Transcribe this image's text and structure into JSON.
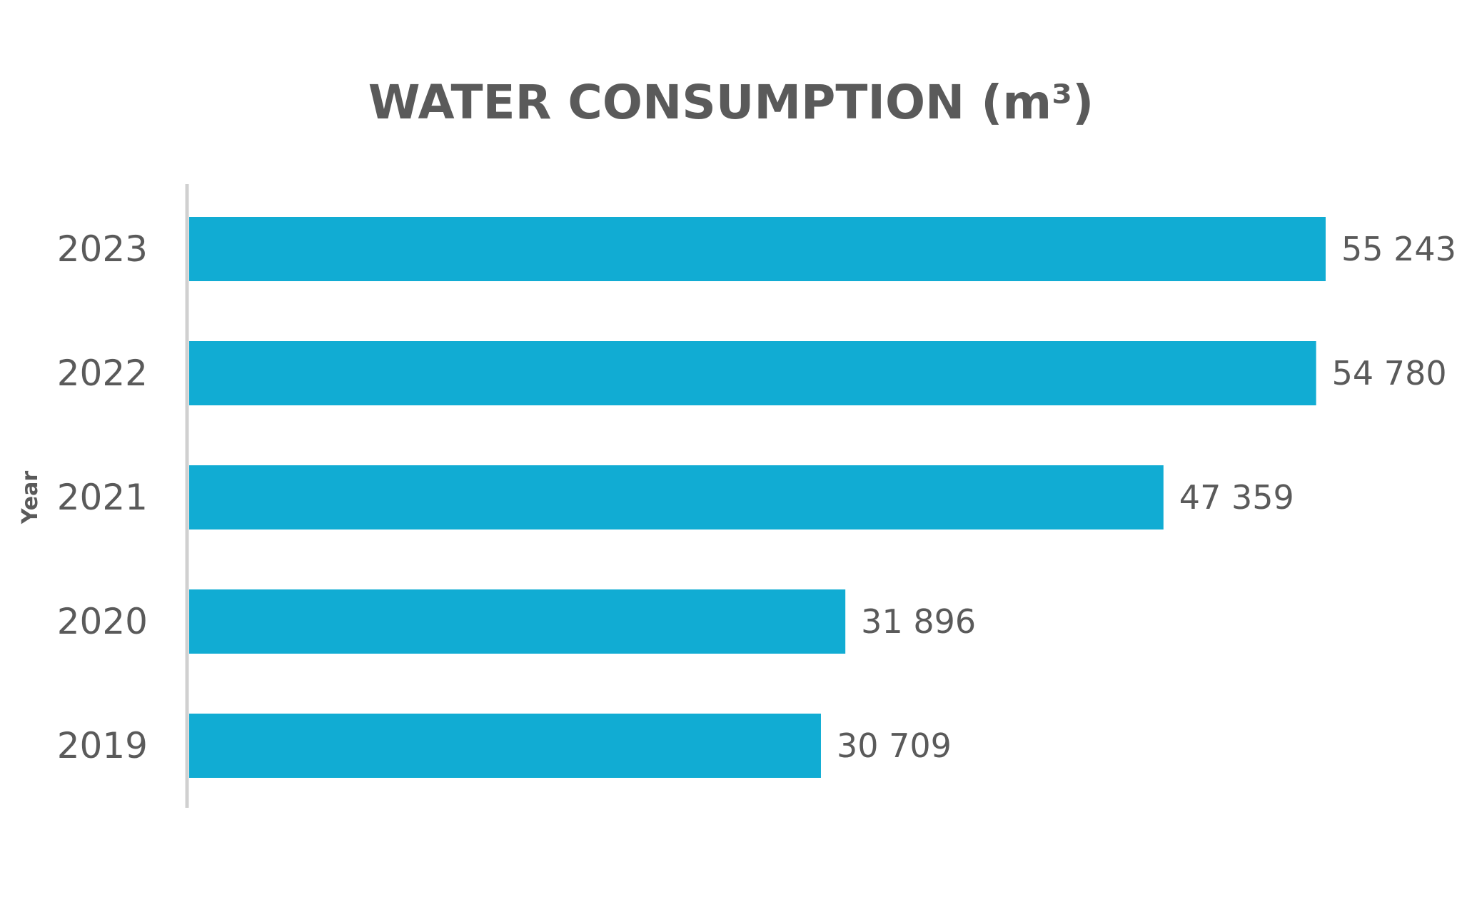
{
  "chart_data": {
    "type": "bar",
    "orientation": "horizontal",
    "title": "WATER CONSUMPTION (m³)",
    "ylabel": "Year",
    "categories": [
      "2023",
      "2022",
      "2021",
      "2020",
      "2019"
    ],
    "values": [
      55243,
      54780,
      47359,
      31896,
      30709
    ],
    "value_labels": [
      "55 243",
      "54 780",
      "47 359",
      "31 896",
      "30 709"
    ],
    "xlim": [
      0,
      55243
    ],
    "bar_color": "#11acd3",
    "axis_color": "#d0d0d0",
    "text_color": "#5a5a5a",
    "grid": false,
    "legend": "none"
  }
}
